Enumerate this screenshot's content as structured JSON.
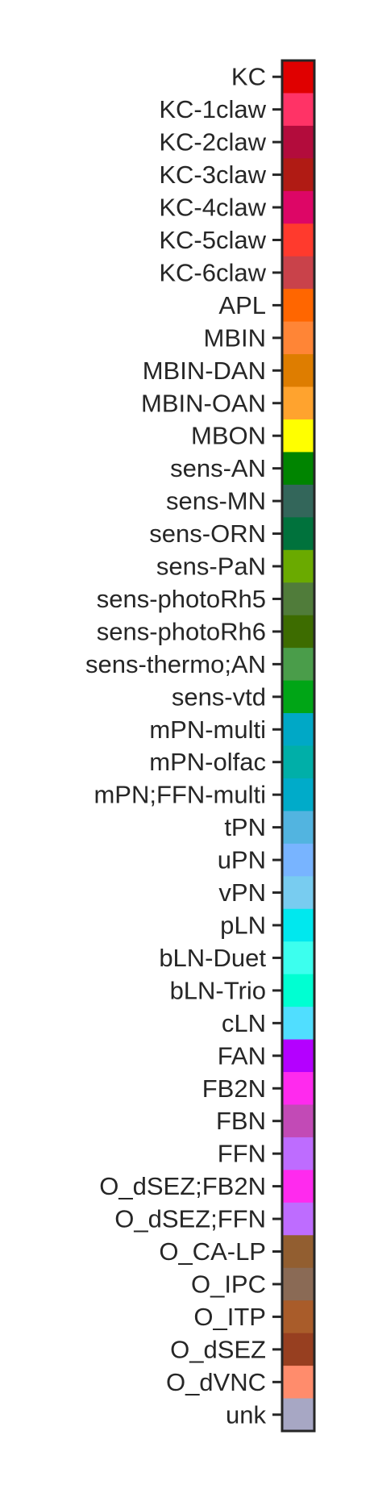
{
  "chart_data": {
    "type": "colorbar-legend",
    "orientation": "vertical",
    "tick_side": "left",
    "title": "",
    "categories": [
      {
        "label": "KC",
        "color": "#e00000"
      },
      {
        "label": "KC-1claw",
        "color": "#ff3366"
      },
      {
        "label": "KC-2claw",
        "color": "#b30c3c"
      },
      {
        "label": "KC-3claw",
        "color": "#b01b14"
      },
      {
        "label": "KC-4claw",
        "color": "#dd0666"
      },
      {
        "label": "KC-5claw",
        "color": "#ff3a2d"
      },
      {
        "label": "KC-6claw",
        "color": "#c9424a"
      },
      {
        "label": "APL",
        "color": "#ff6600"
      },
      {
        "label": "MBIN",
        "color": "#ff8536"
      },
      {
        "label": "MBIN-DAN",
        "color": "#de7d00"
      },
      {
        "label": "MBIN-OAN",
        "color": "#ffa32e"
      },
      {
        "label": "MBON",
        "color": "#ffff00"
      },
      {
        "label": "sens-AN",
        "color": "#008400"
      },
      {
        "label": "sens-MN",
        "color": "#33665a"
      },
      {
        "label": "sens-ORN",
        "color": "#00723c"
      },
      {
        "label": "sens-PaN",
        "color": "#6aaa00"
      },
      {
        "label": "sens-photoRh5",
        "color": "#507c3a"
      },
      {
        "label": "sens-photoRh6",
        "color": "#3d6c00"
      },
      {
        "label": "sens-thermo;AN",
        "color": "#4a9d4a"
      },
      {
        "label": "sens-vtd",
        "color": "#00a516"
      },
      {
        "label": "mPN-multi",
        "color": "#00a8c6"
      },
      {
        "label": "mPN-olfac",
        "color": "#00afa8"
      },
      {
        "label": "mPN;FFN-multi",
        "color": "#00abc9"
      },
      {
        "label": "tPN",
        "color": "#52b4e0"
      },
      {
        "label": "uPN",
        "color": "#78b4ff"
      },
      {
        "label": "vPN",
        "color": "#78ccf0"
      },
      {
        "label": "pLN",
        "color": "#00e8ee"
      },
      {
        "label": "bLN-Duet",
        "color": "#3cffee"
      },
      {
        "label": "bLN-Trio",
        "color": "#00ffd2"
      },
      {
        "label": "cLN",
        "color": "#50deff"
      },
      {
        "label": "FAN",
        "color": "#b400ff"
      },
      {
        "label": "FB2N",
        "color": "#ff2aee"
      },
      {
        "label": "FBN",
        "color": "#c24ab6"
      },
      {
        "label": "FFN",
        "color": "#be6cff"
      },
      {
        "label": "O_dSEZ;FB2N",
        "color": "#ff2aee"
      },
      {
        "label": "O_dSEZ;FFN",
        "color": "#be6cff"
      },
      {
        "label": "O_CA-LP",
        "color": "#925e30"
      },
      {
        "label": "O_IPC",
        "color": "#8a6a55"
      },
      {
        "label": "O_ITP",
        "color": "#a95c2a"
      },
      {
        "label": "O_dSEZ",
        "color": "#973f20"
      },
      {
        "label": "O_dVNC",
        "color": "#ff8c6c"
      },
      {
        "label": "unk",
        "color": "#a7a7c4"
      }
    ]
  }
}
